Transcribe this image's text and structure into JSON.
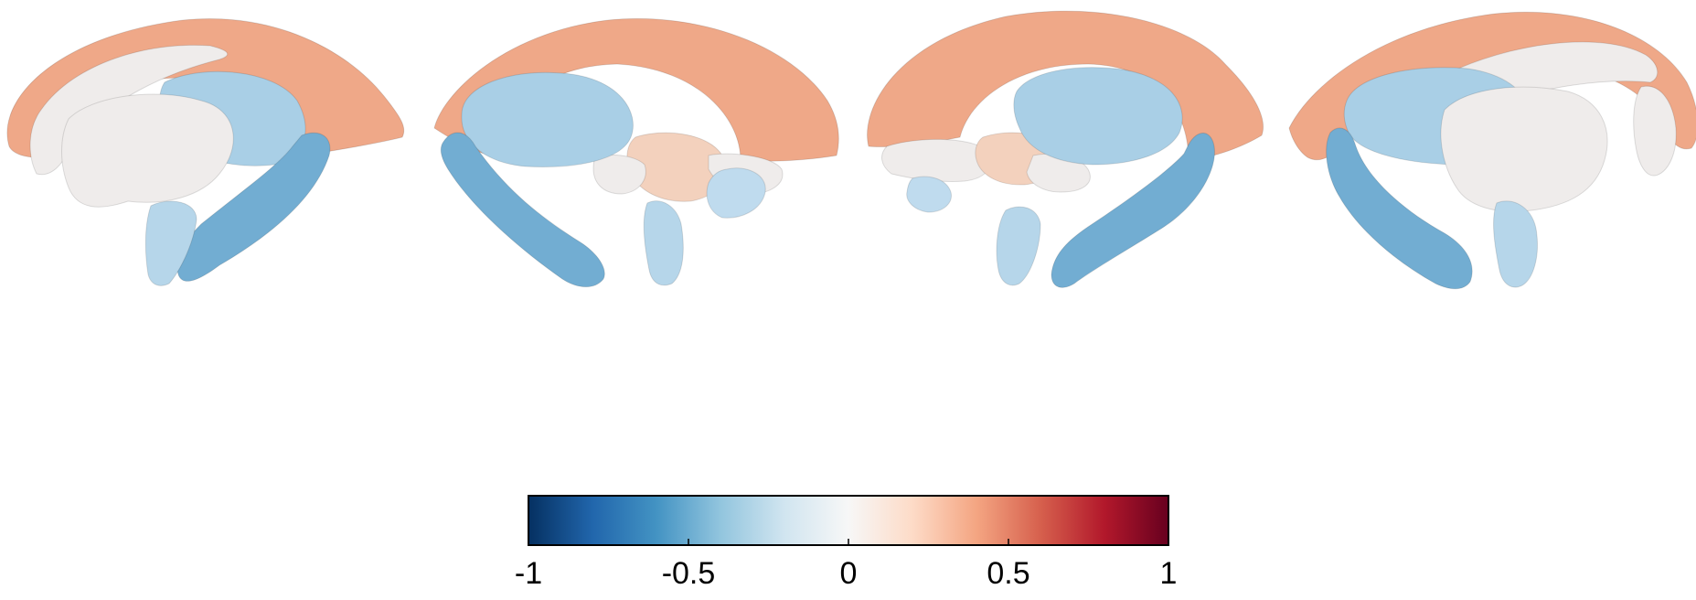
{
  "colors": {
    "caudate_accumbens": "#efa888",
    "thalamus": "#efeceb",
    "putamen": "#a9cfe6",
    "pallidum": "#bfdbee",
    "hippocampus": "#72add2",
    "amygdala": "#b6d6ea",
    "brainstem": "#f3d1bd",
    "colorbar_stops": [
      "#053061",
      "#2166ac",
      "#4393c3",
      "#92c5de",
      "#d1e5f0",
      "#f7f7f7",
      "#fddbc7",
      "#f4a582",
      "#d6604d",
      "#b2182b",
      "#67001f"
    ]
  },
  "views": [
    {
      "name": "left-lateral"
    },
    {
      "name": "left-medial"
    },
    {
      "name": "right-medial"
    },
    {
      "name": "right-lateral"
    }
  ],
  "colorbar": {
    "min": -1,
    "max": 1,
    "ticks": [
      {
        "value": -1,
        "label": "-1"
      },
      {
        "value": -0.5,
        "label": "-0.5"
      },
      {
        "value": 0,
        "label": "0"
      },
      {
        "value": 0.5,
        "label": "0.5"
      },
      {
        "value": 1,
        "label": "1"
      }
    ]
  }
}
